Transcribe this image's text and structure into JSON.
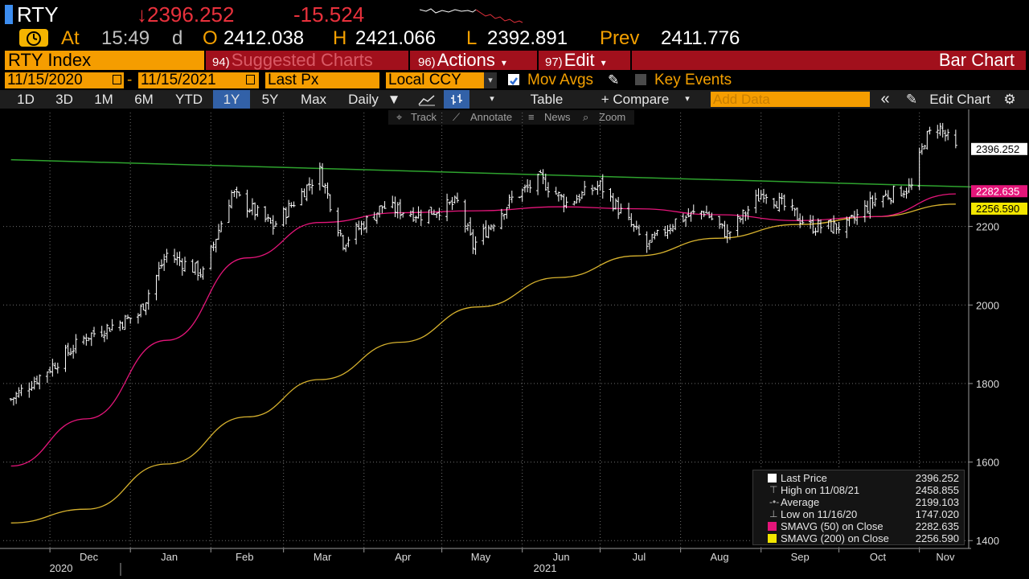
{
  "header": {
    "ticker": "RTY",
    "last_price": "↓2396.252",
    "net_change": "-15.524"
  },
  "quote": {
    "at_label": "At",
    "time": "15:49",
    "time_flag": "d",
    "open_label": "O",
    "open": "2412.038",
    "high_label": "H",
    "high": "2421.066",
    "low_label": "L",
    "low": "2392.891",
    "prev_label": "Prev",
    "prev": "2411.776"
  },
  "menubar": {
    "security": "RTY Index",
    "suggested_num": "94)",
    "suggested": "Suggested Charts",
    "actions_num": "96)",
    "actions": "Actions",
    "edit_num": "97)",
    "edit": "Edit",
    "chart_type": "Bar Chart"
  },
  "options": {
    "start_date": "11/15/2020",
    "range_sep": "-",
    "end_date": "11/15/2021",
    "field": "Last Px",
    "currency": "Local CCY",
    "mov_avgs": "Mov Avgs",
    "mov_avgs_checked": true,
    "key_events": "Key Events",
    "key_events_checked": false
  },
  "toolbar": {
    "periods": [
      "1D",
      "3D",
      "1M",
      "6M",
      "YTD",
      "1Y",
      "5Y",
      "Max"
    ],
    "active_period": "1Y",
    "frequency": "Daily",
    "table": "Table",
    "compare": "+ Compare",
    "add_data_placeholder": "Add Data",
    "collapse": "«",
    "edit_chart": "Edit Chart"
  },
  "subtools": {
    "track": "Track",
    "annotate": "Annotate",
    "news": "News",
    "zoom": "Zoom"
  },
  "legend": {
    "rows": [
      {
        "label": "Last Price",
        "value": "2396.252",
        "color": "#ffffff"
      },
      {
        "label": "High on 11/08/21",
        "value": "2458.855",
        "color": "#ffffff"
      },
      {
        "label": "Average",
        "value": "2199.103",
        "color": "#ffffff"
      },
      {
        "label": "Low on 11/16/20",
        "value": "1747.020",
        "color": "#ffffff"
      },
      {
        "label": "SMAVG (50)  on Close",
        "value": "2282.635",
        "color": "#e5157a"
      },
      {
        "label": "SMAVG (200)  on Close",
        "value": "2256.590",
        "color": "#f2e600"
      }
    ]
  },
  "colors": {
    "background": "#000000",
    "price_bars": "#ffffff",
    "sma50": "#e5157a",
    "sma200": "#d7b22e",
    "trendline": "#2ea32e",
    "up_change": "#e8313c",
    "amber": "#f59d00",
    "red_bar": "#a1101c"
  },
  "chart_data": {
    "type": "line",
    "yaxis": {
      "ticks": [
        1400,
        1600,
        1800,
        2000,
        2200
      ],
      "ylim": [
        1380,
        2490
      ],
      "side": "right"
    },
    "xaxis": {
      "months": [
        "Dec",
        "Jan",
        "Feb",
        "Mar",
        "Apr",
        "May",
        "Jun",
        "Jul",
        "Aug",
        "Sep",
        "Oct",
        "Nov"
      ],
      "years": [
        "2020",
        "2021"
      ]
    },
    "grid": true,
    "legend_position": "bottom-right",
    "value_tags": [
      {
        "value": "2396.252",
        "series": "price"
      },
      {
        "value": "2282.635",
        "series": "sma50"
      },
      {
        "value": "2256.590",
        "series": "sma200"
      }
    ],
    "last_price": 2396.252,
    "high": {
      "date": "11/08/21",
      "value": 2458.855
    },
    "low": {
      "date": "11/16/20",
      "value": 1747.02
    },
    "average": 2199.103,
    "price_series": {
      "name": "Last Price",
      "x": [
        "2020-11-16",
        "2020-12-01",
        "2020-12-15",
        "2021-01-04",
        "2021-01-15",
        "2021-01-29",
        "2021-02-09",
        "2021-02-25",
        "2021-03-15",
        "2021-03-24",
        "2021-04-08",
        "2021-04-23",
        "2021-05-07",
        "2021-05-13",
        "2021-05-28",
        "2021-06-08",
        "2021-06-18",
        "2021-07-01",
        "2021-07-19",
        "2021-07-30",
        "2021-08-10",
        "2021-08-19",
        "2021-09-02",
        "2021-09-20",
        "2021-10-04",
        "2021-10-15",
        "2021-10-29",
        "2021-11-03",
        "2021-11-08",
        "2021-11-15"
      ],
      "values": [
        1760,
        1840,
        1920,
        1975,
        2130,
        2080,
        2285,
        2200,
        2340,
        2160,
        2250,
        2230,
        2260,
        2150,
        2270,
        2320,
        2260,
        2305,
        2150,
        2215,
        2240,
        2180,
        2290,
        2200,
        2200,
        2270,
        2300,
        2420,
        2458,
        2396
      ]
    },
    "series": [
      {
        "name": "SMAVG (50)  on Close",
        "x": [
          "2020-11-16",
          "2020-12-15",
          "2021-01-15",
          "2021-02-15",
          "2021-03-15",
          "2021-04-15",
          "2021-05-15",
          "2021-06-15",
          "2021-07-15",
          "2021-08-15",
          "2021-09-15",
          "2021-10-15",
          "2021-11-15"
        ],
        "values": [
          1590,
          1710,
          1910,
          2120,
          2210,
          2235,
          2240,
          2250,
          2245,
          2230,
          2215,
          2225,
          2283
        ]
      },
      {
        "name": "SMAVG (200)  on Close",
        "x": [
          "2020-11-16",
          "2020-12-15",
          "2021-01-15",
          "2021-02-15",
          "2021-03-15",
          "2021-04-15",
          "2021-05-15",
          "2021-06-15",
          "2021-07-15",
          "2021-08-15",
          "2021-09-15",
          "2021-10-15",
          "2021-11-15"
        ],
        "values": [
          1445,
          1480,
          1595,
          1715,
          1810,
          1905,
          1995,
          2070,
          2125,
          2170,
          2205,
          2225,
          2257
        ]
      },
      {
        "name": "Trendline",
        "x": [
          "2020-11-16",
          "2021-11-15"
        ],
        "values": [
          2370,
          2300
        ]
      }
    ]
  }
}
